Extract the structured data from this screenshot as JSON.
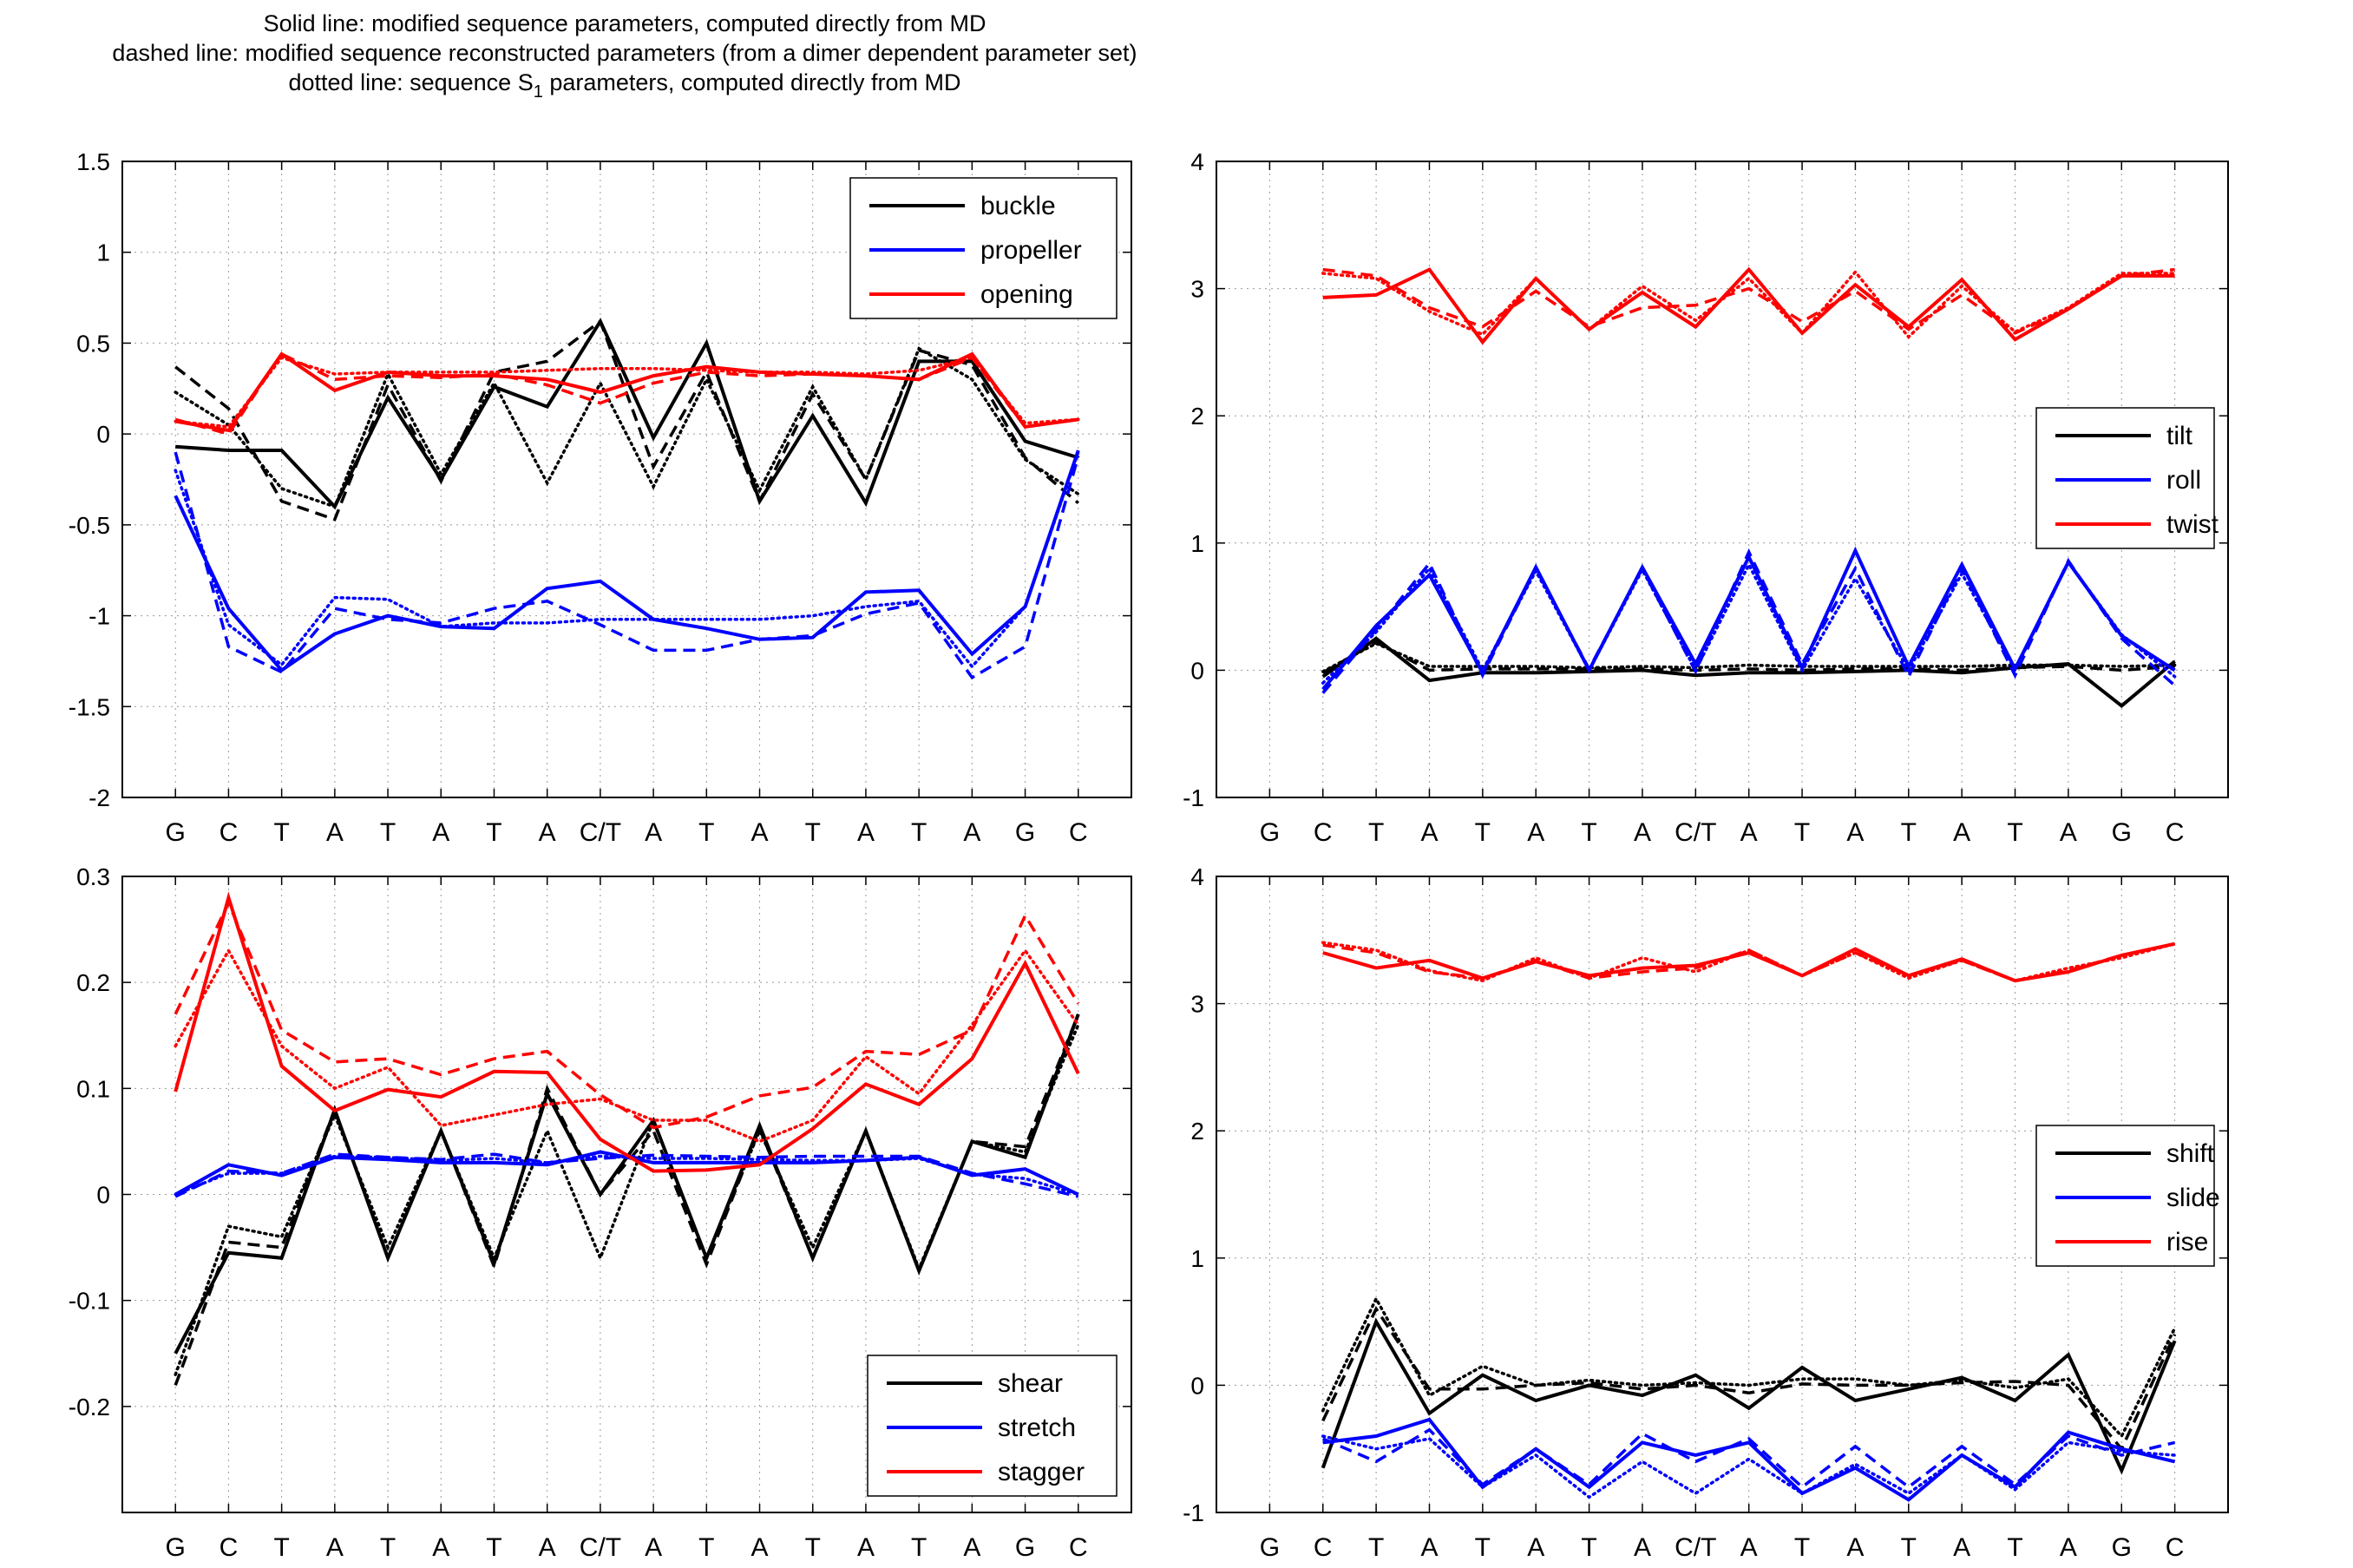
{
  "caption": {
    "line1": "Solid line: modified sequence parameters, computed directly from MD",
    "line2": "dashed line: modified sequence reconstructed parameters (from a dimer dependent parameter set)",
    "line3_pre": "dotted line: sequence S",
    "line3_sub": "1",
    "line3_post": " parameters, computed directly from MD"
  },
  "colors": {
    "black": "#000000",
    "blue": "#0000ff",
    "red": "#ff0000"
  },
  "chart_data": [
    {
      "type": "line",
      "categories": [
        "G",
        "C",
        "T",
        "A",
        "T",
        "A",
        "T",
        "A",
        "C/T",
        "A",
        "T",
        "A",
        "T",
        "A",
        "T",
        "A",
        "G",
        "C"
      ],
      "ylim": [
        -2,
        1.5
      ],
      "yticks": [
        -2,
        -1.5,
        -1,
        -0.5,
        0,
        0.5,
        1,
        1.5
      ],
      "grid": true,
      "legend": "top-right",
      "series": [
        {
          "name": "buckle",
          "color": "#000000",
          "style": "solid",
          "values": [
            -0.07,
            -0.09,
            -0.09,
            -0.4,
            0.2,
            -0.25,
            0.26,
            0.15,
            0.62,
            -0.02,
            0.5,
            -0.37,
            0.1,
            -0.38,
            0.4,
            0.4,
            -0.04,
            -0.13
          ]
        },
        {
          "color": "#000000",
          "style": "dashed",
          "values": [
            0.37,
            0.14,
            -0.37,
            -0.47,
            0.27,
            -0.26,
            0.34,
            0.4,
            0.62,
            -0.18,
            0.34,
            -0.37,
            0.22,
            -0.25,
            0.46,
            0.38,
            -0.13,
            -0.38
          ]
        },
        {
          "color": "#000000",
          "style": "dotted",
          "values": [
            0.23,
            0.05,
            -0.3,
            -0.4,
            0.33,
            -0.22,
            0.28,
            -0.27,
            0.28,
            -0.29,
            0.3,
            -0.31,
            0.26,
            -0.25,
            0.47,
            0.3,
            -0.14,
            -0.33
          ]
        },
        {
          "name": "propeller",
          "color": "#0000ff",
          "style": "solid",
          "values": [
            -0.34,
            -0.96,
            -1.3,
            -1.1,
            -1.0,
            -1.06,
            -1.07,
            -0.85,
            -0.81,
            -1.02,
            -1.07,
            -1.13,
            -1.12,
            -0.87,
            -0.86,
            -1.21,
            -0.95,
            -0.09
          ]
        },
        {
          "color": "#0000ff",
          "style": "dashed",
          "values": [
            -0.1,
            -1.17,
            -1.31,
            -0.96,
            -1.02,
            -1.04,
            -0.96,
            -0.92,
            -1.05,
            -1.19,
            -1.19,
            -1.13,
            -1.11,
            -0.99,
            -0.93,
            -1.34,
            -1.17,
            -0.12
          ]
        },
        {
          "color": "#0000ff",
          "style": "dotted",
          "values": [
            -0.2,
            -1.05,
            -1.27,
            -0.9,
            -0.91,
            -1.06,
            -1.04,
            -1.04,
            -1.02,
            -1.02,
            -1.02,
            -1.02,
            -1.0,
            -0.95,
            -0.92,
            -1.28,
            -0.95,
            -0.1
          ]
        },
        {
          "name": "opening",
          "color": "#ff0000",
          "style": "solid",
          "values": [
            0.07,
            0.02,
            0.44,
            0.24,
            0.34,
            0.32,
            0.32,
            0.3,
            0.23,
            0.32,
            0.37,
            0.34,
            0.33,
            0.32,
            0.3,
            0.44,
            0.04,
            0.08
          ]
        },
        {
          "color": "#ff0000",
          "style": "dashed",
          "values": [
            0.08,
            0.0,
            0.44,
            0.3,
            0.32,
            0.31,
            0.33,
            0.27,
            0.17,
            0.28,
            0.34,
            0.32,
            0.33,
            0.32,
            0.3,
            0.42,
            0.04,
            0.08
          ]
        },
        {
          "color": "#ff0000",
          "style": "dotted",
          "values": [
            0.07,
            0.04,
            0.42,
            0.33,
            0.34,
            0.34,
            0.34,
            0.35,
            0.36,
            0.36,
            0.35,
            0.34,
            0.34,
            0.33,
            0.35,
            0.42,
            0.06,
            0.08
          ]
        }
      ]
    },
    {
      "type": "line",
      "categories": [
        "G",
        "C",
        "T",
        "A",
        "T",
        "A",
        "T",
        "A",
        "C/T",
        "A",
        "T",
        "A",
        "T",
        "A",
        "T",
        "A",
        "G",
        "C"
      ],
      "ylim": [
        -1,
        4
      ],
      "yticks": [
        -1,
        0,
        1,
        2,
        3,
        4
      ],
      "grid": true,
      "legend": "right",
      "series": [
        {
          "name": "tilt",
          "color": "#000000",
          "style": "solid",
          "values": [
            null,
            -0.05,
            0.25,
            -0.08,
            -0.02,
            -0.02,
            -0.01,
            0.0,
            -0.04,
            -0.02,
            -0.02,
            -0.01,
            0.0,
            -0.02,
            0.02,
            0.05,
            -0.28,
            0.07
          ]
        },
        {
          "color": "#000000",
          "style": "dashed",
          "values": [
            null,
            -0.02,
            0.22,
            0.0,
            0.01,
            0.01,
            0.01,
            0.01,
            0.0,
            0.01,
            0.0,
            0.01,
            0.01,
            0.0,
            0.02,
            0.03,
            0.0,
            0.03
          ]
        },
        {
          "color": "#000000",
          "style": "dotted",
          "values": [
            null,
            -0.01,
            0.21,
            0.03,
            0.03,
            0.03,
            0.02,
            0.03,
            0.02,
            0.04,
            0.03,
            0.03,
            0.03,
            0.03,
            0.04,
            0.04,
            0.03,
            0.04
          ]
        },
        {
          "name": "roll",
          "color": "#0000ff",
          "style": "solid",
          "values": [
            null,
            -0.15,
            0.35,
            0.75,
            -0.02,
            0.81,
            0.0,
            0.81,
            0.05,
            0.89,
            0.02,
            0.94,
            0.03,
            0.83,
            0.01,
            0.85,
            0.27,
            0.0
          ]
        },
        {
          "color": "#0000ff",
          "style": "dashed",
          "values": [
            null,
            -0.18,
            0.32,
            0.84,
            -0.04,
            0.8,
            0.01,
            0.8,
            -0.01,
            0.93,
            0.05,
            0.8,
            -0.05,
            0.8,
            -0.04,
            0.86,
            0.25,
            -0.12
          ]
        },
        {
          "color": "#0000ff",
          "style": "dotted",
          "values": [
            null,
            -0.1,
            0.3,
            0.8,
            0.0,
            0.78,
            0.0,
            0.79,
            0.0,
            0.83,
            0.0,
            0.72,
            0.0,
            0.76,
            0.0,
            0.85,
            0.28,
            -0.05
          ]
        },
        {
          "name": "twist",
          "color": "#ff0000",
          "style": "solid",
          "values": [
            null,
            2.93,
            2.95,
            3.15,
            2.58,
            3.08,
            2.68,
            2.97,
            2.7,
            3.15,
            2.65,
            3.03,
            2.7,
            3.07,
            2.6,
            2.84,
            3.1,
            3.1
          ]
        },
        {
          "color": "#ff0000",
          "style": "dashed",
          "values": [
            null,
            3.15,
            3.1,
            2.85,
            2.7,
            2.98,
            2.7,
            2.85,
            2.87,
            3.0,
            2.74,
            2.98,
            2.68,
            2.95,
            2.65,
            2.84,
            3.1,
            3.15
          ]
        },
        {
          "color": "#ff0000",
          "style": "dotted",
          "values": [
            null,
            3.12,
            3.08,
            2.82,
            2.64,
            3.08,
            2.68,
            3.02,
            2.75,
            3.08,
            2.65,
            3.13,
            2.62,
            3.02,
            2.66,
            2.85,
            3.12,
            3.12
          ]
        }
      ]
    },
    {
      "type": "line",
      "categories": [
        "G",
        "C",
        "T",
        "A",
        "T",
        "A",
        "T",
        "A",
        "C/T",
        "A",
        "T",
        "A",
        "T",
        "A",
        "T",
        "A",
        "G",
        "C"
      ],
      "ylim": [
        -0.3,
        0.3
      ],
      "yticks": [
        -0.2,
        -0.1,
        0,
        0.1,
        0.2,
        0.3
      ],
      "grid": true,
      "legend": "bottom-right",
      "series": [
        {
          "name": "shear",
          "color": "#000000",
          "style": "solid",
          "values": [
            -0.15,
            -0.055,
            -0.06,
            0.08,
            -0.06,
            0.06,
            -0.065,
            0.095,
            0.0,
            0.07,
            -0.06,
            0.065,
            -0.06,
            0.06,
            -0.072,
            0.05,
            0.035,
            0.17
          ]
        },
        {
          "color": "#000000",
          "style": "dashed",
          "values": [
            -0.18,
            -0.045,
            -0.05,
            0.08,
            -0.06,
            0.06,
            -0.068,
            0.1,
            0.0,
            0.06,
            -0.066,
            0.062,
            -0.06,
            0.06,
            -0.072,
            0.05,
            0.045,
            0.17
          ]
        },
        {
          "color": "#000000",
          "style": "dotted",
          "values": [
            -0.17,
            -0.03,
            -0.04,
            0.075,
            -0.05,
            0.06,
            -0.06,
            0.06,
            -0.06,
            0.07,
            -0.06,
            0.06,
            -0.05,
            0.06,
            -0.07,
            0.05,
            0.04,
            0.16
          ]
        },
        {
          "name": "stretch",
          "color": "#0000ff",
          "style": "solid",
          "values": [
            0.0,
            0.028,
            0.018,
            0.035,
            0.033,
            0.03,
            0.03,
            0.028,
            0.04,
            0.03,
            0.03,
            0.03,
            0.03,
            0.032,
            0.035,
            0.018,
            0.024,
            0.0
          ]
        },
        {
          "color": "#0000ff",
          "style": "dashed",
          "values": [
            -0.002,
            0.022,
            0.02,
            0.038,
            0.035,
            0.033,
            0.038,
            0.03,
            0.034,
            0.037,
            0.036,
            0.035,
            0.036,
            0.036,
            0.036,
            0.02,
            0.01,
            -0.002
          ]
        },
        {
          "color": "#0000ff",
          "style": "dotted",
          "values": [
            0.0,
            0.02,
            0.02,
            0.036,
            0.035,
            0.032,
            0.034,
            0.03,
            0.036,
            0.034,
            0.034,
            0.033,
            0.032,
            0.032,
            0.034,
            0.019,
            0.015,
            0.0
          ]
        },
        {
          "name": "stagger",
          "color": "#ff0000",
          "style": "solid",
          "values": [
            0.097,
            0.28,
            0.121,
            0.079,
            0.099,
            0.092,
            0.116,
            0.115,
            0.052,
            0.022,
            0.023,
            0.028,
            0.062,
            0.104,
            0.085,
            0.128,
            0.218,
            0.114
          ]
        },
        {
          "color": "#ff0000",
          "style": "dashed",
          "values": [
            0.17,
            0.275,
            0.155,
            0.125,
            0.128,
            0.113,
            0.128,
            0.135,
            0.094,
            0.063,
            0.073,
            0.093,
            0.101,
            0.135,
            0.132,
            0.155,
            0.263,
            0.18
          ]
        },
        {
          "color": "#ff0000",
          "style": "dotted",
          "values": [
            0.14,
            0.23,
            0.14,
            0.1,
            0.12,
            0.065,
            0.075,
            0.085,
            0.09,
            0.07,
            0.07,
            0.05,
            0.07,
            0.13,
            0.095,
            0.16,
            0.23,
            0.16
          ]
        }
      ]
    },
    {
      "type": "line",
      "categories": [
        "G",
        "C",
        "T",
        "A",
        "T",
        "A",
        "T",
        "A",
        "C/T",
        "A",
        "T",
        "A",
        "T",
        "A",
        "T",
        "A",
        "G",
        "C"
      ],
      "ylim": [
        -1,
        4
      ],
      "yticks": [
        -1,
        0,
        1,
        2,
        3,
        4
      ],
      "grid": true,
      "legend": "right",
      "series": [
        {
          "name": "shift",
          "color": "#000000",
          "style": "solid",
          "values": [
            null,
            -0.65,
            0.5,
            -0.22,
            0.08,
            -0.12,
            0.0,
            -0.08,
            0.08,
            -0.18,
            0.14,
            -0.12,
            -0.03,
            0.06,
            -0.12,
            0.24,
            -0.67,
            0.35
          ]
        },
        {
          "color": "#000000",
          "style": "dashed",
          "values": [
            null,
            -0.28,
            0.6,
            -0.03,
            -0.03,
            0.0,
            0.02,
            -0.03,
            0.0,
            -0.06,
            0.01,
            0.0,
            0.0,
            0.02,
            0.03,
            0.0,
            -0.5,
            0.4
          ]
        },
        {
          "color": "#000000",
          "style": "dotted",
          "values": [
            null,
            -0.2,
            0.68,
            -0.08,
            0.15,
            0.0,
            0.04,
            0.0,
            0.02,
            0.0,
            0.05,
            0.05,
            0.0,
            0.04,
            -0.02,
            0.05,
            -0.4,
            0.45
          ]
        },
        {
          "name": "slide",
          "color": "#0000ff",
          "style": "solid",
          "values": [
            null,
            -0.45,
            -0.4,
            -0.27,
            -0.8,
            -0.5,
            -0.8,
            -0.45,
            -0.55,
            -0.45,
            -0.85,
            -0.65,
            -0.9,
            -0.55,
            -0.8,
            -0.37,
            -0.5,
            -0.6
          ]
        },
        {
          "color": "#0000ff",
          "style": "dashed",
          "values": [
            null,
            -0.42,
            -0.6,
            -0.35,
            -0.78,
            -0.5,
            -0.78,
            -0.38,
            -0.6,
            -0.42,
            -0.8,
            -0.48,
            -0.8,
            -0.48,
            -0.78,
            -0.4,
            -0.55,
            -0.45
          ]
        },
        {
          "color": "#0000ff",
          "style": "dotted",
          "values": [
            null,
            -0.4,
            -0.5,
            -0.42,
            -0.8,
            -0.55,
            -0.88,
            -0.6,
            -0.85,
            -0.58,
            -0.85,
            -0.62,
            -0.85,
            -0.55,
            -0.82,
            -0.45,
            -0.52,
            -0.55
          ]
        },
        {
          "name": "rise",
          "color": "#ff0000",
          "style": "solid",
          "values": [
            null,
            3.4,
            3.28,
            3.34,
            3.2,
            3.33,
            3.22,
            3.28,
            3.3,
            3.4,
            3.22,
            3.43,
            3.22,
            3.35,
            3.18,
            3.25,
            3.38,
            3.47
          ]
        },
        {
          "color": "#ff0000",
          "style": "dashed",
          "values": [
            null,
            3.46,
            3.4,
            3.25,
            3.2,
            3.34,
            3.2,
            3.25,
            3.28,
            3.42,
            3.22,
            3.4,
            3.22,
            3.34,
            3.18,
            3.26,
            3.38,
            3.47
          ]
        },
        {
          "color": "#ff0000",
          "style": "dotted",
          "values": [
            null,
            3.48,
            3.42,
            3.26,
            3.18,
            3.36,
            3.2,
            3.36,
            3.25,
            3.42,
            3.22,
            3.4,
            3.2,
            3.34,
            3.18,
            3.28,
            3.36,
            3.47
          ]
        }
      ]
    }
  ]
}
